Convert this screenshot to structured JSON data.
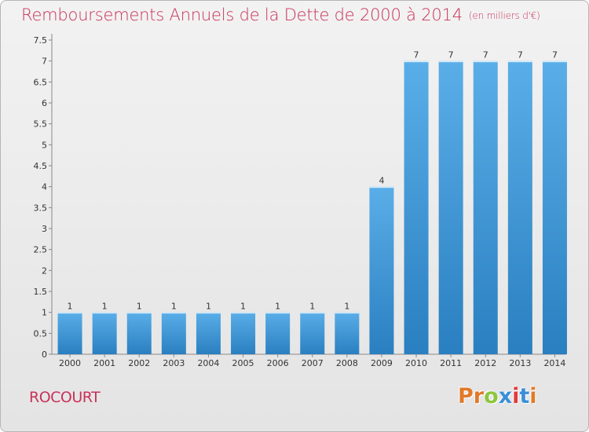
{
  "header": {
    "title": "Remboursements Annuels de la Dette de 2000 à 2014",
    "unit": "(en milliers d'€)"
  },
  "footer": {
    "town": "ROCOURT",
    "logo": "Proxiti"
  },
  "colors": {
    "title": "#c8325a",
    "bar_light": "#5aaee8",
    "bar_dark": "#2a7fc0",
    "logo_letters": [
      "#e07a2a",
      "#e07a2a",
      "#8dc63f",
      "#3a8fd8",
      "#e03c3c",
      "#3a8fd8",
      "#e07a2a"
    ]
  },
  "chart_data": {
    "type": "bar",
    "title": "Remboursements Annuels de la Dette de 2000 à 2014",
    "subtitle": "(en milliers d'€)",
    "categories": [
      "2000",
      "2001",
      "2002",
      "2003",
      "2004",
      "2005",
      "2006",
      "2007",
      "2008",
      "2009",
      "2010",
      "2011",
      "2012",
      "2013",
      "2014"
    ],
    "values": [
      1,
      1,
      1,
      1,
      1,
      1,
      1,
      1,
      1,
      4,
      7,
      7,
      7,
      7,
      7
    ],
    "data_labels": [
      "1",
      "1",
      "1",
      "1",
      "1",
      "1",
      "1",
      "1",
      "1",
      "4",
      "7",
      "7",
      "7",
      "7",
      "7"
    ],
    "yticks": [
      "0",
      "0.5",
      "1",
      "1.5",
      "2",
      "2.5",
      "3",
      "3.5",
      "4",
      "4.5",
      "5",
      "5.5",
      "6",
      "6.5",
      "7",
      "7.5"
    ],
    "ylim": [
      0,
      7.5
    ],
    "grid": false,
    "legend": "none"
  }
}
